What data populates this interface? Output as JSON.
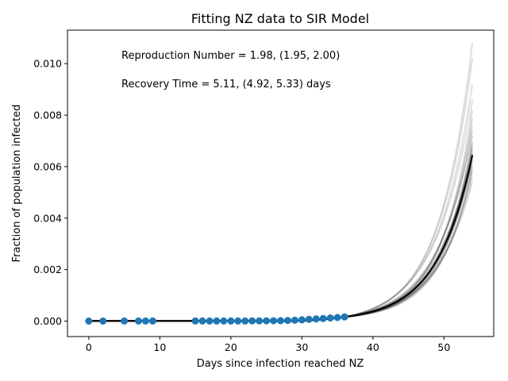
{
  "chart_data": {
    "type": "line",
    "title": "Fitting NZ data to SIR Model",
    "xlabel": "Days since infection reached NZ",
    "ylabel": "Fraction of population infected",
    "xlim": [
      -3,
      57
    ],
    "ylim": [
      -0.0006,
      0.0113
    ],
    "xticks": [
      0,
      10,
      20,
      30,
      40,
      50
    ],
    "xtick_labels": [
      "0",
      "10",
      "20",
      "30",
      "40",
      "50"
    ],
    "yticks": [
      0.0,
      0.002,
      0.004,
      0.006,
      0.008,
      0.01
    ],
    "ytick_labels": [
      "0.000",
      "0.002",
      "0.004",
      "0.006",
      "0.008",
      "0.010"
    ],
    "grid": false,
    "annotations": [
      "Reproduction Number = 1.98, (1.95, 2.00)",
      "Recovery Time = 5.11, (4.92, 5.33) days"
    ],
    "observed": {
      "color": "#1f77b4",
      "x": [
        0,
        2,
        5,
        7,
        8,
        9,
        15,
        16,
        17,
        18,
        19,
        20,
        21,
        22,
        23,
        24,
        25,
        26,
        27,
        28,
        29,
        30,
        31,
        32,
        33,
        34,
        35,
        36
      ],
      "y": [
        0,
        0,
        3e-06,
        3e-06,
        3e-06,
        3e-06,
        4e-06,
        4e-06,
        4e-06,
        4e-06,
        4e-06,
        5e-06,
        5e-06,
        5e-06,
        6e-06,
        8e-06,
        1e-05,
        1.3e-05,
        1.8e-05,
        2.5e-05,
        3.5e-05,
        5e-05,
        7e-05,
        8.5e-05,
        0.0001,
        0.00012,
        0.00014,
        0.00016
      ]
    },
    "fit": {
      "color": "#000000",
      "x_start": 0,
      "x_end": 54,
      "y_end": 0.00645,
      "y_end_samples": [
        0.0054,
        0.0056,
        0.0058,
        0.0059,
        0.006,
        0.0061,
        0.0062,
        0.0063,
        0.0064,
        0.0065,
        0.0066,
        0.0067,
        0.0068,
        0.0069,
        0.007,
        0.0072,
        0.0074,
        0.0076,
        0.0079,
        0.0082,
        0.0086,
        0.0092,
        0.0102,
        0.0108
      ]
    }
  }
}
